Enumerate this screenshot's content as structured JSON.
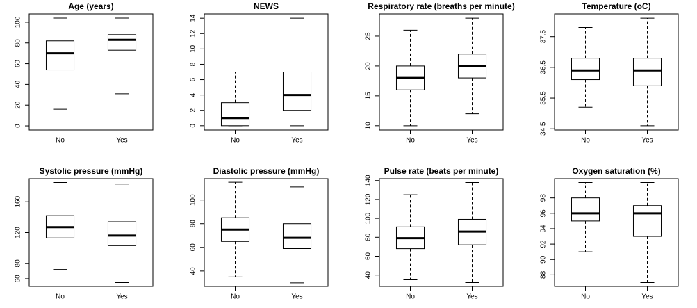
{
  "chart_data": [
    {
      "type": "box",
      "title": "Age (years)",
      "categories": [
        "No",
        "Yes"
      ],
      "boxes": [
        {
          "min": 16,
          "q1": 54,
          "median": 70,
          "q3": 82,
          "max": 104
        },
        {
          "min": 31,
          "q1": 73,
          "median": 83,
          "q3": 88,
          "max": 104
        }
      ],
      "ylim": [
        -4,
        108
      ],
      "yticks": [
        0,
        20,
        40,
        60,
        80,
        100
      ],
      "color": "#ffffff"
    },
    {
      "type": "box",
      "title": "NEWS",
      "categories": [
        "No",
        "Yes"
      ],
      "boxes": [
        {
          "min": 0,
          "q1": 0,
          "median": 1,
          "q3": 3,
          "max": 7
        },
        {
          "min": 0,
          "q1": 2,
          "median": 4,
          "q3": 7,
          "max": 14
        }
      ],
      "ylim": [
        -0.56,
        14.56
      ],
      "yticks": [
        0,
        2,
        4,
        6,
        8,
        10,
        12,
        14
      ],
      "color": "#ffffff"
    },
    {
      "type": "box",
      "title": "Respiratory rate (breaths per minute)",
      "categories": [
        "No",
        "Yes"
      ],
      "boxes": [
        {
          "min": 10,
          "q1": 16,
          "median": 18,
          "q3": 20,
          "max": 26
        },
        {
          "min": 12,
          "q1": 18,
          "median": 20,
          "q3": 22,
          "max": 28
        }
      ],
      "ylim": [
        9.28,
        28.72
      ],
      "yticks": [
        10,
        15,
        20,
        25
      ],
      "color": "#ffffff"
    },
    {
      "type": "box",
      "title": "Temperature (oC)",
      "categories": [
        "No",
        "Yes"
      ],
      "boxes": [
        {
          "min": 35.2,
          "q1": 36.1,
          "median": 36.4,
          "q3": 36.8,
          "max": 37.8
        },
        {
          "min": 34.6,
          "q1": 35.9,
          "median": 36.4,
          "q3": 36.8,
          "max": 38.1
        }
      ],
      "ylim": [
        34.46,
        38.24
      ],
      "yticks": [
        34.5,
        35.5,
        36.5,
        37.5
      ],
      "color": "#ffffff"
    },
    {
      "type": "box",
      "title": "Systolic pressure (mmHg)",
      "categories": [
        "No",
        "Yes"
      ],
      "boxes": [
        {
          "min": 72,
          "q1": 113,
          "median": 127,
          "q3": 142,
          "max": 185
        },
        {
          "min": 55,
          "q1": 103,
          "median": 116,
          "q3": 134,
          "max": 183
        }
      ],
      "ylim": [
        50,
        190
      ],
      "yticks": [
        60,
        80,
        120,
        160
      ],
      "color": "#ffffff"
    },
    {
      "type": "box",
      "title": "Diastolic pressure (mmHg)",
      "categories": [
        "No",
        "Yes"
      ],
      "boxes": [
        {
          "min": 35,
          "q1": 65,
          "median": 75,
          "q3": 85,
          "max": 115
        },
        {
          "min": 30,
          "q1": 59,
          "median": 68,
          "q3": 80,
          "max": 111
        }
      ],
      "ylim": [
        27,
        118
      ],
      "yticks": [
        40,
        60,
        80,
        100
      ],
      "color": "#ffffff"
    },
    {
      "type": "box",
      "title": "Pulse rate (beats per minute)",
      "categories": [
        "No",
        "Yes"
      ],
      "boxes": [
        {
          "min": 35,
          "q1": 68,
          "median": 79,
          "q3": 91,
          "max": 125
        },
        {
          "min": 32,
          "q1": 72,
          "median": 86,
          "q3": 99,
          "max": 138
        }
      ],
      "ylim": [
        28,
        142
      ],
      "yticks": [
        40,
        60,
        80,
        100,
        120,
        140
      ],
      "color": "#ffffff"
    },
    {
      "type": "box",
      "title": "Oxygen saturation (%)",
      "categories": [
        "No",
        "Yes"
      ],
      "boxes": [
        {
          "min": 91,
          "q1": 95,
          "median": 96,
          "q3": 98,
          "max": 100
        },
        {
          "min": 87,
          "q1": 93,
          "median": 96,
          "q3": 97,
          "max": 100
        }
      ],
      "ylim": [
        86.5,
        100.5
      ],
      "yticks": [
        88,
        90,
        92,
        94,
        96,
        98
      ],
      "color": "#ffffff"
    }
  ]
}
